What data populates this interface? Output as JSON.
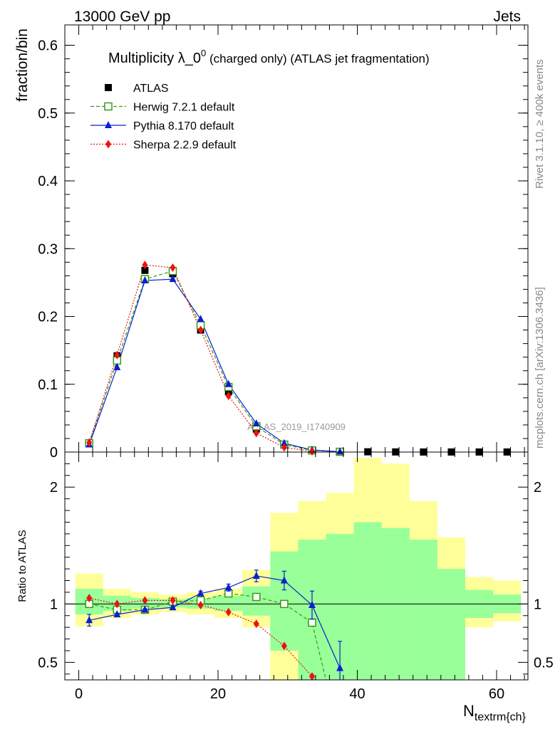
{
  "header": {
    "energy_label": "13000 GeV pp",
    "category_label": "Jets"
  },
  "side_labels": {
    "rivet": "Rivet 3.1.10, ≥ 400k events",
    "mcplots": "mcplots.cern.ch [arXiv:1306.3436]"
  },
  "watermark": "ATLAS_2019_I1740909",
  "chart_data": [
    {
      "type": "scatter",
      "panel": "main",
      "title_main": "Multiplicity λ_0",
      "title_sup": "0",
      "title_rest": " (charged only) (ATLAS jet fragmentation)",
      "ylabel": "fraction/bin",
      "xlabel": "N",
      "xlabel_sub": "textrm{ch}",
      "xlim": [
        -2,
        64.5
      ],
      "ylim": [
        0,
        0.63
      ],
      "yticks": [
        0,
        0.1,
        0.2,
        0.3,
        0.4,
        0.5,
        0.6
      ],
      "ytick_labels": [
        "0",
        "0.1",
        "0.2",
        "0.3",
        "0.4",
        "0.5",
        "0.6"
      ],
      "x": [
        1.5,
        5.5,
        9.5,
        13.5,
        17.5,
        21.5,
        25.5,
        29.5,
        33.5,
        37.5,
        41.5,
        45.5,
        49.5,
        53.5,
        57.5,
        61.5
      ],
      "series": [
        {
          "name": "ATLAS",
          "color": "#000000",
          "marker": "square",
          "values": [
            0.013,
            0.142,
            0.268,
            0.263,
            0.18,
            0.089,
            0.034,
            0.011,
            0.003,
            0.001,
            0.0004,
            0.0002,
            0.0001,
            0.0001,
            0.0001,
            0.0001
          ]
        },
        {
          "name": "Herwig 7.2.1 default",
          "color": "#3a9a12",
          "marker": "open-square",
          "line": "dashed",
          "values": [
            0.013,
            0.135,
            0.255,
            0.267,
            0.187,
            0.096,
            0.038,
            0.011,
            0.0025,
            0.0004
          ]
        },
        {
          "name": "Pythia 8.170 default",
          "color": "#0a1fd0",
          "marker": "triangle",
          "line": "solid",
          "values": [
            0.011,
            0.125,
            0.253,
            0.255,
            0.196,
            0.1,
            0.042,
            0.013,
            0.003,
            0.0005
          ]
        },
        {
          "name": "Sherpa 2.2.9 default",
          "color": "#ee1111",
          "marker": "diamond",
          "line": "dotted",
          "values": [
            0.014,
            0.143,
            0.276,
            0.272,
            0.18,
            0.083,
            0.028,
            0.007,
            0.001
          ]
        }
      ]
    },
    {
      "type": "scatter",
      "panel": "ratio",
      "ylabel": "Ratio to ATLAS",
      "ylim": [
        0.35,
        2.3
      ],
      "yticks": [
        0.5,
        1,
        2
      ],
      "ytick_labels": [
        "0.5",
        "1",
        "2"
      ],
      "xticks": [
        0,
        20,
        40,
        60
      ],
      "xtick_labels": [
        "0",
        "20",
        "40",
        "60"
      ],
      "band_edges": [
        -0.5,
        3.5,
        7.5,
        11.5,
        15.5,
        19.5,
        23.5,
        27.5,
        31.5,
        35.5,
        39.5,
        43.5,
        47.5,
        51.5,
        55.5,
        59.5,
        63.5
      ],
      "band_green": [
        [
          0.91,
          1.13
        ],
        [
          0.94,
          1.07
        ],
        [
          0.96,
          1.05
        ],
        [
          0.97,
          1.04
        ],
        [
          0.96,
          1.05
        ],
        [
          0.94,
          1.07
        ],
        [
          0.9,
          1.15
        ],
        [
          0.6,
          1.45
        ],
        [
          0.35,
          1.55
        ],
        [
          0.35,
          1.6
        ],
        [
          0.35,
          1.7
        ],
        [
          0.35,
          1.65
        ],
        [
          0.35,
          1.55
        ],
        [
          0.35,
          1.3
        ],
        [
          0.88,
          1.12
        ],
        [
          0.92,
          1.08
        ]
      ],
      "band_yellow": [
        [
          0.81,
          1.26
        ],
        [
          0.88,
          1.13
        ],
        [
          0.91,
          1.1
        ],
        [
          0.93,
          1.08
        ],
        [
          0.91,
          1.1
        ],
        [
          0.88,
          1.13
        ],
        [
          0.8,
          1.29
        ],
        [
          0.35,
          1.78
        ],
        [
          0.35,
          1.88
        ],
        [
          0.35,
          1.95
        ],
        [
          0.35,
          2.25
        ],
        [
          0.35,
          2.2
        ],
        [
          0.35,
          1.88
        ],
        [
          0.35,
          1.57
        ],
        [
          0.8,
          1.23
        ],
        [
          0.85,
          1.2
        ]
      ],
      "series": [
        {
          "name": "Herwig 7.2.1 default",
          "color": "#3a9a12",
          "x": [
            1.5,
            5.5,
            9.5,
            13.5,
            17.5,
            21.5,
            25.5,
            29.5,
            33.5,
            35.5
          ],
          "values": [
            1.0,
            0.95,
            0.95,
            1.02,
            1.03,
            1.09,
            1.06,
            1.0,
            0.84,
            0.35
          ]
        },
        {
          "name": "Pythia 8.170 default",
          "color": "#0a1fd0",
          "x": [
            1.5,
            5.5,
            9.5,
            13.5,
            17.5,
            21.5,
            25.5,
            29.5,
            33.5,
            37.5
          ],
          "values": [
            0.86,
            0.91,
            0.95,
            0.97,
            1.09,
            1.14,
            1.24,
            1.2,
            0.99,
            0.45
          ],
          "err": [
            0.05,
            0.01,
            0.01,
            0.01,
            0.02,
            0.03,
            0.05,
            0.08,
            0.12,
            0.23
          ]
        },
        {
          "name": "Sherpa 2.2.9 default",
          "color": "#ee1111",
          "x": [
            1.5,
            5.5,
            9.5,
            13.5,
            17.5,
            21.5,
            25.5,
            29.5,
            33.5
          ],
          "values": [
            1.05,
            1.0,
            1.03,
            1.03,
            0.99,
            0.93,
            0.83,
            0.64,
            0.38
          ]
        }
      ]
    }
  ]
}
